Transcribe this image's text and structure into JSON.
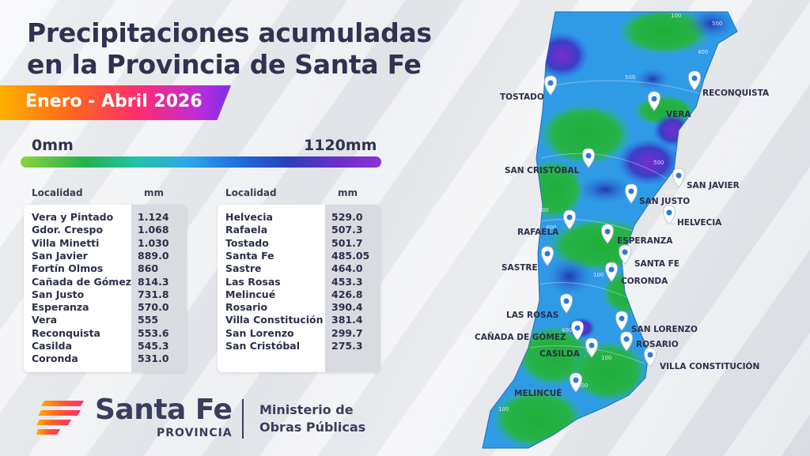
{
  "title_line1": "Precipitaciones acumuladas",
  "title_line2": "en la Provincia de Santa Fe",
  "period": "Enero - Abril 2026",
  "scale": {
    "min": "0mm",
    "max": "1120mm"
  },
  "table_headers": {
    "locality": "Localidad",
    "mm": "mm"
  },
  "table_left": [
    {
      "loc": "Vera y Pintado",
      "mm": "1.124"
    },
    {
      "loc": "Gdor. Crespo",
      "mm": "1.068"
    },
    {
      "loc": "Villa Minetti",
      "mm": "1.030"
    },
    {
      "loc": "San Javier",
      "mm": "889.0"
    },
    {
      "loc": "Fortín Olmos",
      "mm": "860"
    },
    {
      "loc": "Cañada de Gómez",
      "mm": "814.3"
    },
    {
      "loc": "San Justo",
      "mm": "731.8"
    },
    {
      "loc": "Esperanza",
      "mm": "570.0"
    },
    {
      "loc": "Vera",
      "mm": "555"
    },
    {
      "loc": "Reconquista",
      "mm": "553.6"
    },
    {
      "loc": "Casilda",
      "mm": "545.3"
    },
    {
      "loc": "Coronda",
      "mm": "531.0"
    }
  ],
  "table_right": [
    {
      "loc": "Helvecia",
      "mm": "529.0"
    },
    {
      "loc": "Rafaela",
      "mm": "507.3"
    },
    {
      "loc": "Tostado",
      "mm": "501.7"
    },
    {
      "loc": "Santa Fe",
      "mm": "485.05"
    },
    {
      "loc": "Sastre",
      "mm": "464.0"
    },
    {
      "loc": "Las Rosas",
      "mm": "453.3"
    },
    {
      "loc": "Melincué",
      "mm": "426.8"
    },
    {
      "loc": "Rosario",
      "mm": "390.4"
    },
    {
      "loc": "Villa Constitución",
      "mm": "381.4"
    },
    {
      "loc": "San Lorenzo",
      "mm": "299.7"
    },
    {
      "loc": "San Cristóbal",
      "mm": "275.3"
    }
  ],
  "brand": {
    "name": "Santa Fe",
    "sub": "PROVINCIA",
    "ministry_line1": "Ministerio de",
    "ministry_line2": "Obras Públicas"
  },
  "map_cities": [
    {
      "name": "TOSTADO",
      "icon": "map-pin-icon"
    },
    {
      "name": "RECONQUISTA",
      "icon": "map-pin-icon"
    },
    {
      "name": "VERA",
      "icon": "map-pin-icon"
    },
    {
      "name": "SAN CRISTÓBAL",
      "icon": "map-pin-icon"
    },
    {
      "name": "SAN JAVIER",
      "icon": "map-pin-icon"
    },
    {
      "name": "SAN JUSTO",
      "icon": "map-pin-icon"
    },
    {
      "name": "HELVECIA",
      "icon": "map-pin-icon"
    },
    {
      "name": "RAFAELA",
      "icon": "map-pin-icon"
    },
    {
      "name": "ESPERANZA",
      "icon": "map-pin-icon"
    },
    {
      "name": "SANTA FE",
      "icon": "map-pin-icon"
    },
    {
      "name": "SASTRE",
      "icon": "map-pin-icon"
    },
    {
      "name": "CORONDA",
      "icon": "map-pin-icon"
    },
    {
      "name": "LAS ROSAS",
      "icon": "map-pin-icon"
    },
    {
      "name": "SAN LORENZO",
      "icon": "map-pin-icon"
    },
    {
      "name": "CAÑADA DE GÓMEZ",
      "icon": "map-pin-icon"
    },
    {
      "name": "ROSARIO",
      "icon": "map-pin-icon"
    },
    {
      "name": "CASILDA",
      "icon": "map-pin-icon"
    },
    {
      "name": "VILLA CONSTITUCIÓN",
      "icon": "map-pin-icon"
    },
    {
      "name": "MELINCUÉ",
      "icon": "map-pin-icon"
    }
  ],
  "contour_labels": [
    "100",
    "500",
    "400",
    "500",
    "500",
    "100",
    "400",
    "500",
    "100",
    "400",
    "100",
    "500",
    "100"
  ],
  "colors": {
    "title": "#2f3350",
    "period_start": "#ffb000",
    "period_end": "#7b2ff0"
  }
}
